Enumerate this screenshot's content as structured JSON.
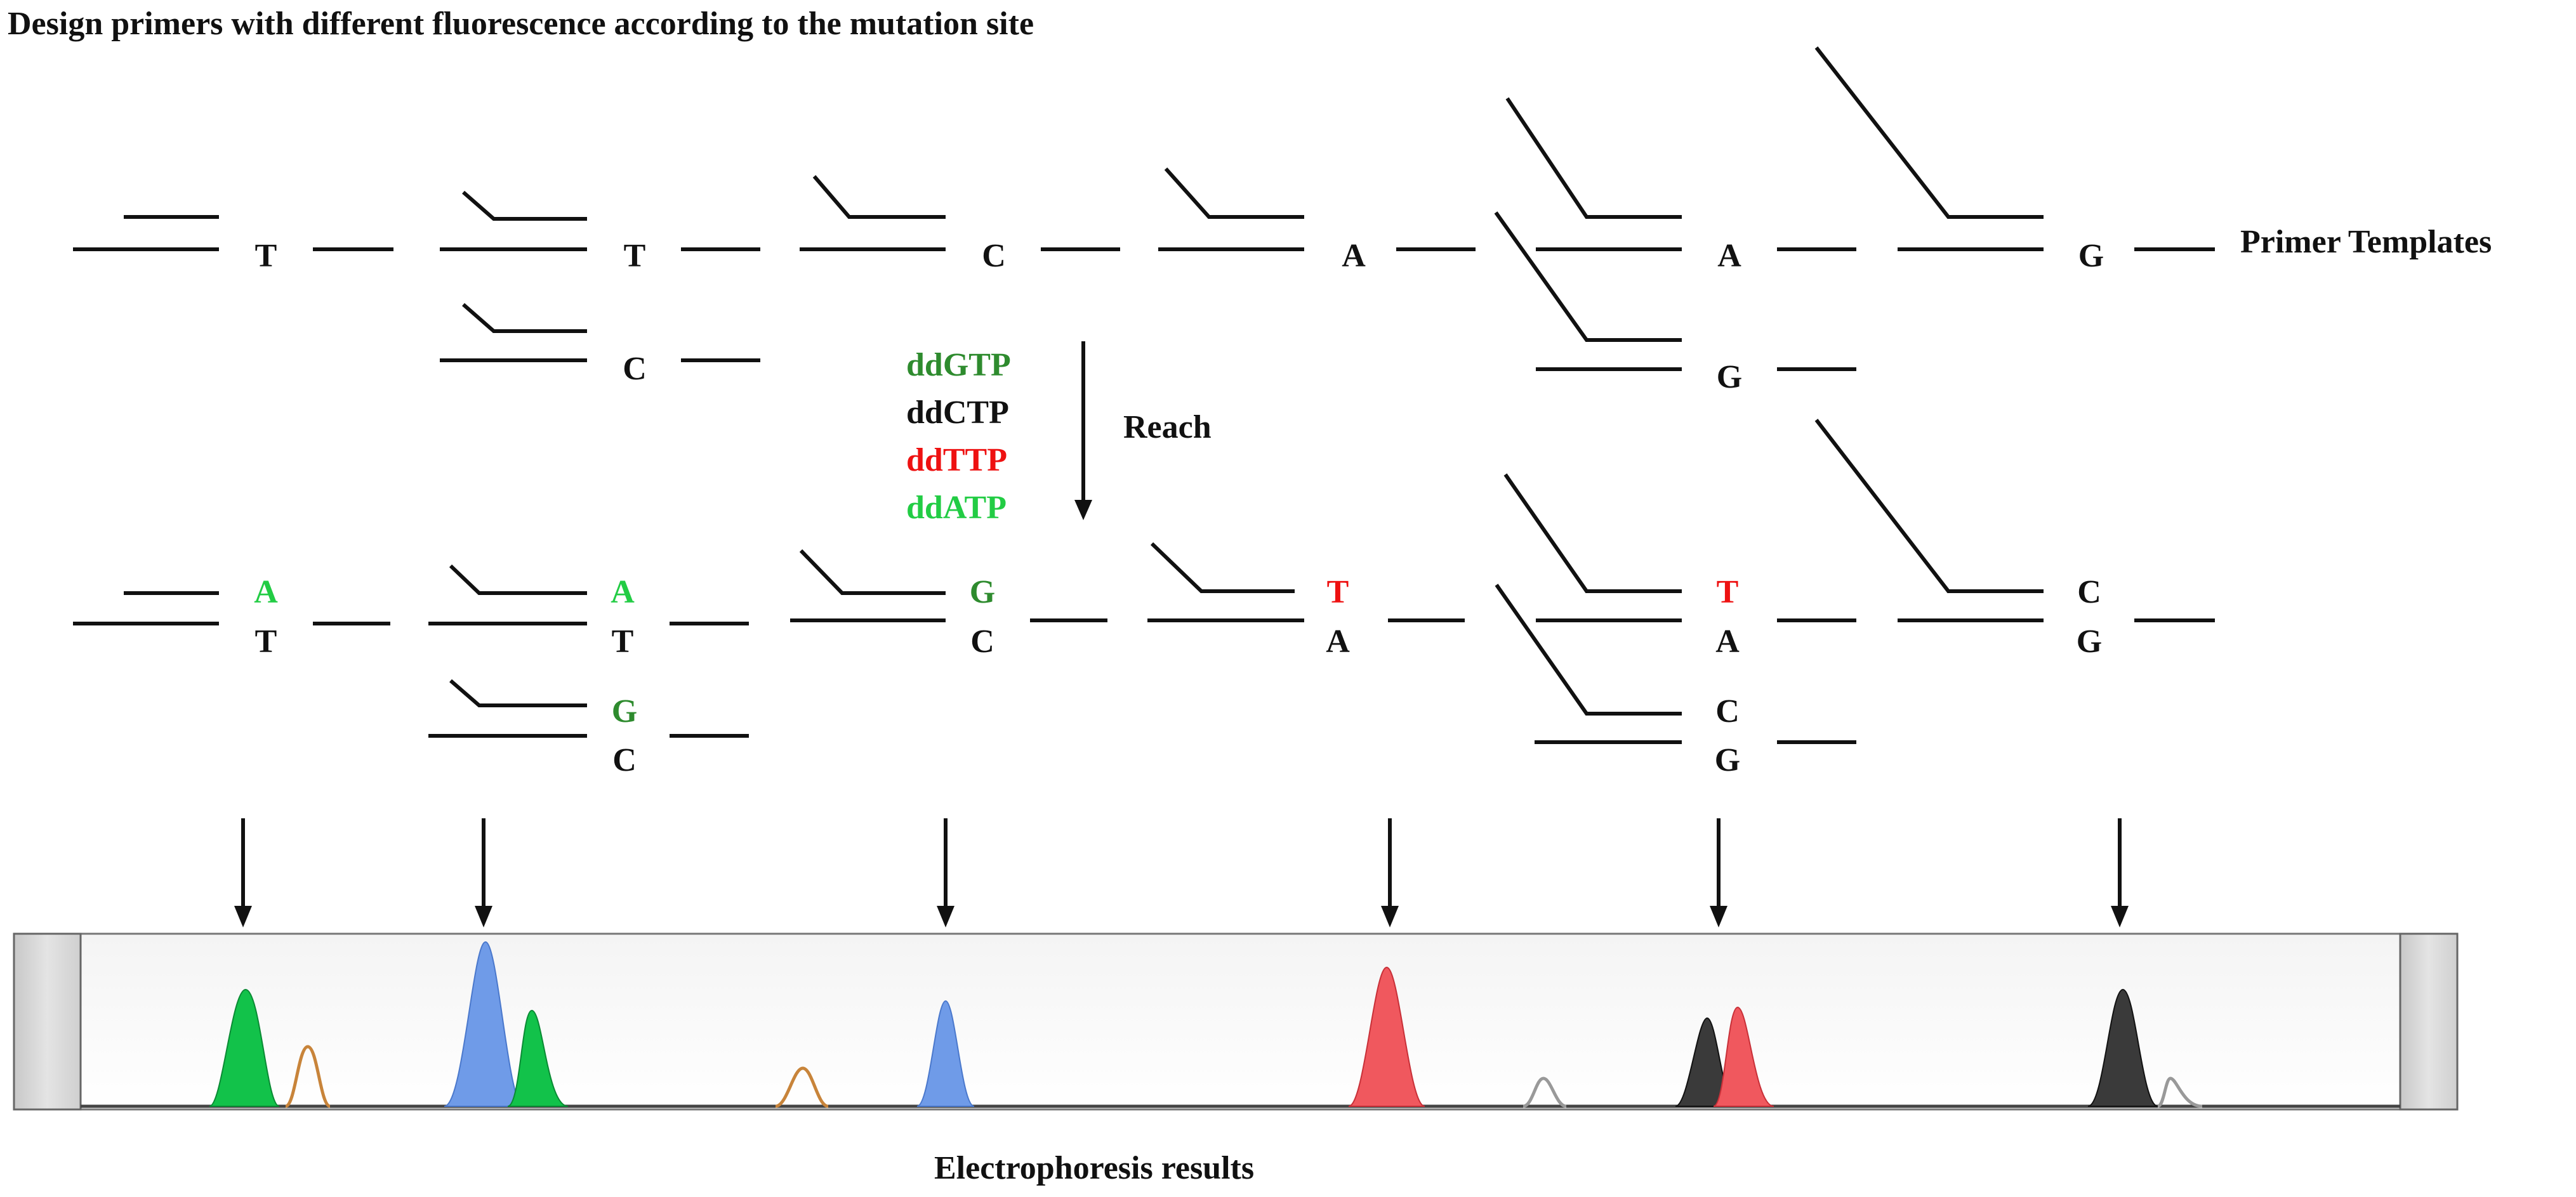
{
  "title": "Design primers with different fluorescence according to the mutation site",
  "primer_templates_label": "Primer Templates",
  "reach_label": "Reach",
  "electrophoresis_label": "Electrophoresis results",
  "colors": {
    "ink": "#111111",
    "ddGTP": "#2e8b2e",
    "ddCTP": "#111111",
    "ddTTP": "#ee1111",
    "ddATP": "#22cc44",
    "peak_green": "#12c24a",
    "peak_blue": "#6f9be8",
    "peak_red": "#f0585e",
    "peak_black": "#3a3a3a",
    "peak_orange": "#c8843a",
    "peak_gray": "#999999"
  },
  "ddntp_list": [
    {
      "label": "ddGTP",
      "color": "#2e8b2e"
    },
    {
      "label": "ddCTP",
      "color": "#111111"
    },
    {
      "label": "ddTTP",
      "color": "#ee1111"
    },
    {
      "label": "ddATP",
      "color": "#22cc44"
    }
  ],
  "templates": {
    "row1": [
      "T",
      "T",
      "C",
      "A",
      "A",
      "G"
    ],
    "row2": [
      "C",
      "G"
    ]
  },
  "results": {
    "row1_added": [
      {
        "base": "A",
        "color": "#22cc44"
      },
      {
        "base": "A",
        "color": "#22cc44"
      },
      {
        "base": "G",
        "color": "#2e8b2e"
      },
      {
        "base": "T",
        "color": "#ee1111"
      },
      {
        "base": "T",
        "color": "#ee1111"
      },
      {
        "base": "C",
        "color": "#111111"
      }
    ],
    "row1_template": [
      "T",
      "T",
      "C",
      "A",
      "A",
      "G"
    ],
    "row2_added": [
      {
        "base": "G",
        "color": "#2e8b2e"
      },
      {
        "base": "C",
        "color": "#111111"
      }
    ],
    "row2_template": [
      "C",
      "G"
    ]
  }
}
